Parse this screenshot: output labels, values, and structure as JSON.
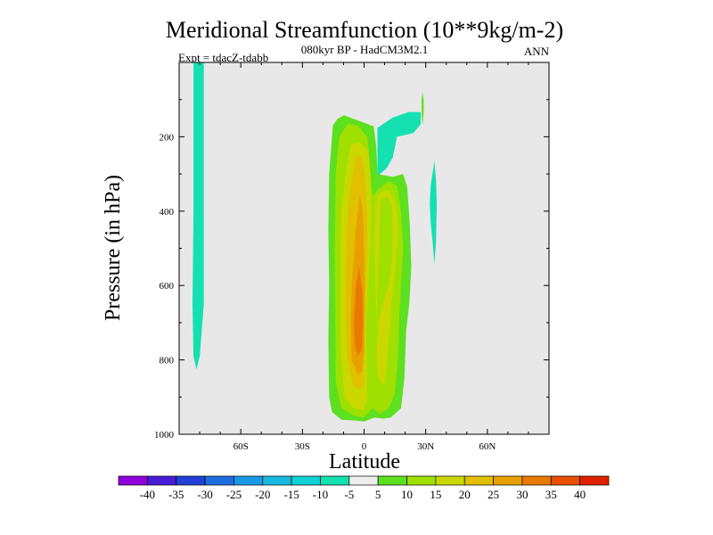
{
  "chart_data": {
    "type": "heatmap",
    "title": "Meridional Streamfunction (10**9kg/m-2)",
    "subtitle": "080kyr BP - HadCM3M2.1",
    "left_label": "Expt = tdacZ-tdabb",
    "right_label": "ANN",
    "xlabel": "Latitude",
    "ylabel": "Pressure (in hPa)",
    "xlim": [
      -90,
      90
    ],
    "ylim": [
      1000,
      0
    ],
    "x_ticks": [
      {
        "value": -60,
        "label": "60S"
      },
      {
        "value": -30,
        "label": "30S"
      },
      {
        "value": 0,
        "label": "0"
      },
      {
        "value": 30,
        "label": "30N"
      },
      {
        "value": 60,
        "label": "60N"
      }
    ],
    "y_ticks": [
      {
        "value": 200,
        "label": "200"
      },
      {
        "value": 400,
        "label": "400"
      },
      {
        "value": 600,
        "label": "600"
      },
      {
        "value": 800,
        "label": "800"
      },
      {
        "value": 1000,
        "label": "1000"
      }
    ],
    "background_color": "#e8e8e8",
    "colorbar": {
      "colors": [
        "#8f00dc",
        "#4a1cd8",
        "#2040d8",
        "#1e6ee0",
        "#1a9ae6",
        "#16b8e0",
        "#10d2d2",
        "#14e0b0",
        "#eeeeee",
        "#5ce020",
        "#a0e000",
        "#cad800",
        "#e0c000",
        "#e8a000",
        "#e87a00",
        "#e85000",
        "#e02000"
      ],
      "labels": [
        "-40",
        "-35",
        "-30",
        "-25",
        "-20",
        "-15",
        "-10",
        "-5",
        "5",
        "10",
        "15",
        "20",
        "25",
        "30",
        "35",
        "40"
      ]
    },
    "contours": [
      {
        "level": "-5",
        "color": "#14e0b0",
        "polygon": [
          [
            -83,
            0
          ],
          [
            -78,
            0
          ],
          [
            -78,
            150
          ],
          [
            -78,
            400
          ],
          [
            -78,
            650
          ],
          [
            -80,
            790
          ],
          [
            -81.6,
            826
          ],
          [
            -83,
            790
          ],
          [
            -83.5,
            650
          ],
          [
            -83,
            400
          ],
          [
            -83,
            150
          ]
        ]
      },
      {
        "level": "-5",
        "color": "#14e0b0",
        "polygon": [
          [
            6.5,
            305
          ],
          [
            11,
            285
          ],
          [
            14,
            255
          ],
          [
            16,
            200
          ],
          [
            24,
            190
          ],
          [
            27.6,
            166
          ],
          [
            27.6,
            134
          ],
          [
            22,
            133
          ],
          [
            14,
            148
          ],
          [
            6.5,
            176
          ],
          [
            6.5,
            240
          ]
        ]
      },
      {
        "level": "-5",
        "color": "#14e0b0",
        "polygon": [
          [
            33.7,
            285
          ],
          [
            32.4,
            332
          ],
          [
            32,
            380
          ],
          [
            32.4,
            430
          ],
          [
            33.3,
            480
          ],
          [
            34.2,
            544
          ],
          [
            35,
            480
          ],
          [
            35.4,
            380
          ],
          [
            35,
            315
          ],
          [
            34.2,
            265
          ]
        ]
      },
      {
        "level": "5",
        "color": "#5ce020",
        "polygon": [
          [
            28.5,
            80
          ],
          [
            28,
            100
          ],
          [
            28,
            135
          ],
          [
            28.5,
            170
          ],
          [
            29,
            135
          ],
          [
            29,
            100
          ]
        ]
      },
      {
        "level": "5",
        "color": "#5ce020",
        "polygon": [
          [
            -15.2,
            170
          ],
          [
            -17,
            300
          ],
          [
            -17.4,
            450
          ],
          [
            -17,
            600
          ],
          [
            -17.4,
            750
          ],
          [
            -17,
            900
          ],
          [
            -15.6,
            940
          ],
          [
            -11,
            961
          ],
          [
            -4,
            963
          ],
          [
            0,
            966
          ],
          [
            5,
            955
          ],
          [
            9.5,
            958
          ],
          [
            13,
            955
          ],
          [
            18,
            930
          ],
          [
            19.6,
            850
          ],
          [
            20.5,
            720
          ],
          [
            22,
            650
          ],
          [
            23,
            550
          ],
          [
            22.2,
            430
          ],
          [
            21,
            335
          ],
          [
            19,
            300
          ],
          [
            14,
            308
          ],
          [
            6.5,
            300
          ],
          [
            6,
            230
          ],
          [
            4.7,
            172
          ],
          [
            0,
            162
          ],
          [
            -5,
            152
          ],
          [
            -9.8,
            142
          ],
          [
            -13,
            152
          ]
        ]
      },
      {
        "level": "10",
        "color": "#a0e000",
        "polygon": [
          [
            -12,
            200
          ],
          [
            -13.8,
            300
          ],
          [
            -14.3,
            500
          ],
          [
            -14,
            700
          ],
          [
            -13.8,
            860
          ],
          [
            -11,
            930
          ],
          [
            -5,
            950
          ],
          [
            0,
            955
          ],
          [
            4,
            930
          ],
          [
            7.5,
            945
          ],
          [
            12,
            930
          ],
          [
            15,
            890
          ],
          [
            16.5,
            800
          ],
          [
            17,
            700
          ],
          [
            18,
            600
          ],
          [
            19,
            500
          ],
          [
            18,
            400
          ],
          [
            16,
            333
          ],
          [
            12,
            320
          ],
          [
            7,
            340
          ],
          [
            4,
            360
          ],
          [
            2.5,
            250
          ],
          [
            1.5,
            200
          ],
          [
            -3,
            170
          ],
          [
            -8,
            165
          ]
        ]
      },
      {
        "level": "15",
        "color": "#cad800",
        "polygon": [
          [
            -6.5,
            220
          ],
          [
            -9,
            300
          ],
          [
            -11,
            400
          ],
          [
            -11.5,
            500
          ],
          [
            -11.5,
            700
          ],
          [
            -11,
            800
          ],
          [
            -9.5,
            900
          ],
          [
            -5,
            930
          ],
          [
            0,
            935
          ],
          [
            1.5,
            900
          ],
          [
            1,
            700
          ],
          [
            2,
            600
          ],
          [
            3,
            500
          ],
          [
            3.5,
            400
          ],
          [
            3,
            300
          ],
          [
            2,
            240
          ],
          [
            -2,
            215
          ]
        ]
      },
      {
        "level": "15",
        "color": "#cad800",
        "polygon": [
          [
            8,
            370
          ],
          [
            10.5,
            360
          ],
          [
            13.5,
            380
          ],
          [
            14,
            450
          ],
          [
            13.5,
            550
          ],
          [
            12,
            600
          ],
          [
            9,
            650
          ],
          [
            7,
            700
          ],
          [
            6,
            800
          ],
          [
            7,
            850
          ],
          [
            10,
            870
          ],
          [
            11.5,
            780
          ],
          [
            13.2,
            660
          ],
          [
            15,
            560
          ],
          [
            16.5,
            450
          ],
          [
            15.5,
            380
          ],
          [
            12,
            345
          ],
          [
            8,
            350
          ],
          [
            5.5,
            380
          ],
          [
            5,
            480
          ],
          [
            5.5,
            600
          ],
          [
            6,
            700
          ]
        ]
      },
      {
        "level": "20",
        "color": "#e0c000",
        "polygon": [
          [
            -4,
            250
          ],
          [
            -7,
            350
          ],
          [
            -8.5,
            450
          ],
          [
            -9,
            550
          ],
          [
            -9,
            700
          ],
          [
            -8,
            800
          ],
          [
            -5.5,
            870
          ],
          [
            -2,
            880
          ],
          [
            0,
            860
          ],
          [
            0.3,
            700
          ],
          [
            1,
            600
          ],
          [
            1.5,
            500
          ],
          [
            1.5,
            400
          ],
          [
            0.3,
            300
          ],
          [
            -1.5,
            255
          ]
        ]
      },
      {
        "level": "25",
        "color": "#e8a000",
        "polygon": [
          [
            -2,
            355
          ],
          [
            -4,
            450
          ],
          [
            -6,
            600
          ],
          [
            -6.5,
            700
          ],
          [
            -6,
            800
          ],
          [
            -3,
            840
          ],
          [
            -1,
            830
          ],
          [
            0,
            780
          ],
          [
            0.2,
            700
          ],
          [
            0.2,
            600
          ],
          [
            0,
            500
          ],
          [
            -0.6,
            400
          ]
        ]
      },
      {
        "level": "30",
        "color": "#e87a00",
        "polygon": [
          [
            -2.4,
            550
          ],
          [
            -4,
            600
          ],
          [
            -5,
            700
          ],
          [
            -4.5,
            760
          ],
          [
            -3,
            790
          ],
          [
            -1,
            770
          ],
          [
            -0.5,
            700
          ],
          [
            -0.8,
            620
          ]
        ]
      }
    ]
  }
}
